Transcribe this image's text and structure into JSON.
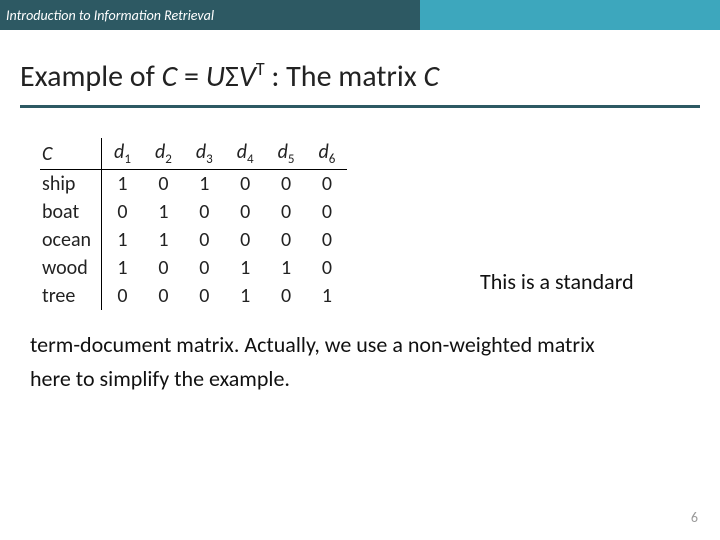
{
  "header": {
    "text": "Introduction to Information Retrieval"
  },
  "title": {
    "pre": "Example of ",
    "C": "C",
    "eq": " = ",
    "U": "U",
    "Sigma": "Σ",
    "V": "V",
    "sup": "T",
    "post": " : The matrix ",
    "C2": "C"
  },
  "matrix": {
    "corner": "C",
    "colprefix": "d",
    "cols": [
      "1",
      "2",
      "3",
      "4",
      "5",
      "6"
    ],
    "rows": [
      {
        "label": "ship",
        "vals": [
          "1",
          "0",
          "1",
          "0",
          "0",
          "0"
        ]
      },
      {
        "label": "boat",
        "vals": [
          "0",
          "1",
          "0",
          "0",
          "0",
          "0"
        ]
      },
      {
        "label": "ocean",
        "vals": [
          "1",
          "1",
          "0",
          "0",
          "0",
          "0"
        ]
      },
      {
        "label": "wood",
        "vals": [
          "1",
          "0",
          "0",
          "1",
          "1",
          "0"
        ]
      },
      {
        "label": "tree",
        "vals": [
          "0",
          "0",
          "0",
          "1",
          "0",
          "1"
        ]
      }
    ]
  },
  "sidenote": "This is a standard",
  "bodytext_l1": "term-document matrix. Actually, we use a non-weighted matrix",
  "bodytext_l2": "here to simplify the example.",
  "pagenum": "6"
}
